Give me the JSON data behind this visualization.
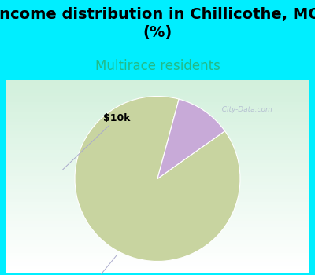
{
  "title": "Income distribution in Chillicothe, MO\n(%)",
  "subtitle": "Multirace residents",
  "title_fontsize": 14,
  "subtitle_fontsize": 12,
  "title_color": "#000000",
  "subtitle_color": "#22bb88",
  "bg_color": "#00eeff",
  "slices": [
    89,
    11
  ],
  "slice_colors": [
    "#c8d4a0",
    "#c8aad8"
  ],
  "label_fontsize": 9,
  "watermark": "  City-Data.com",
  "startangle": 75
}
